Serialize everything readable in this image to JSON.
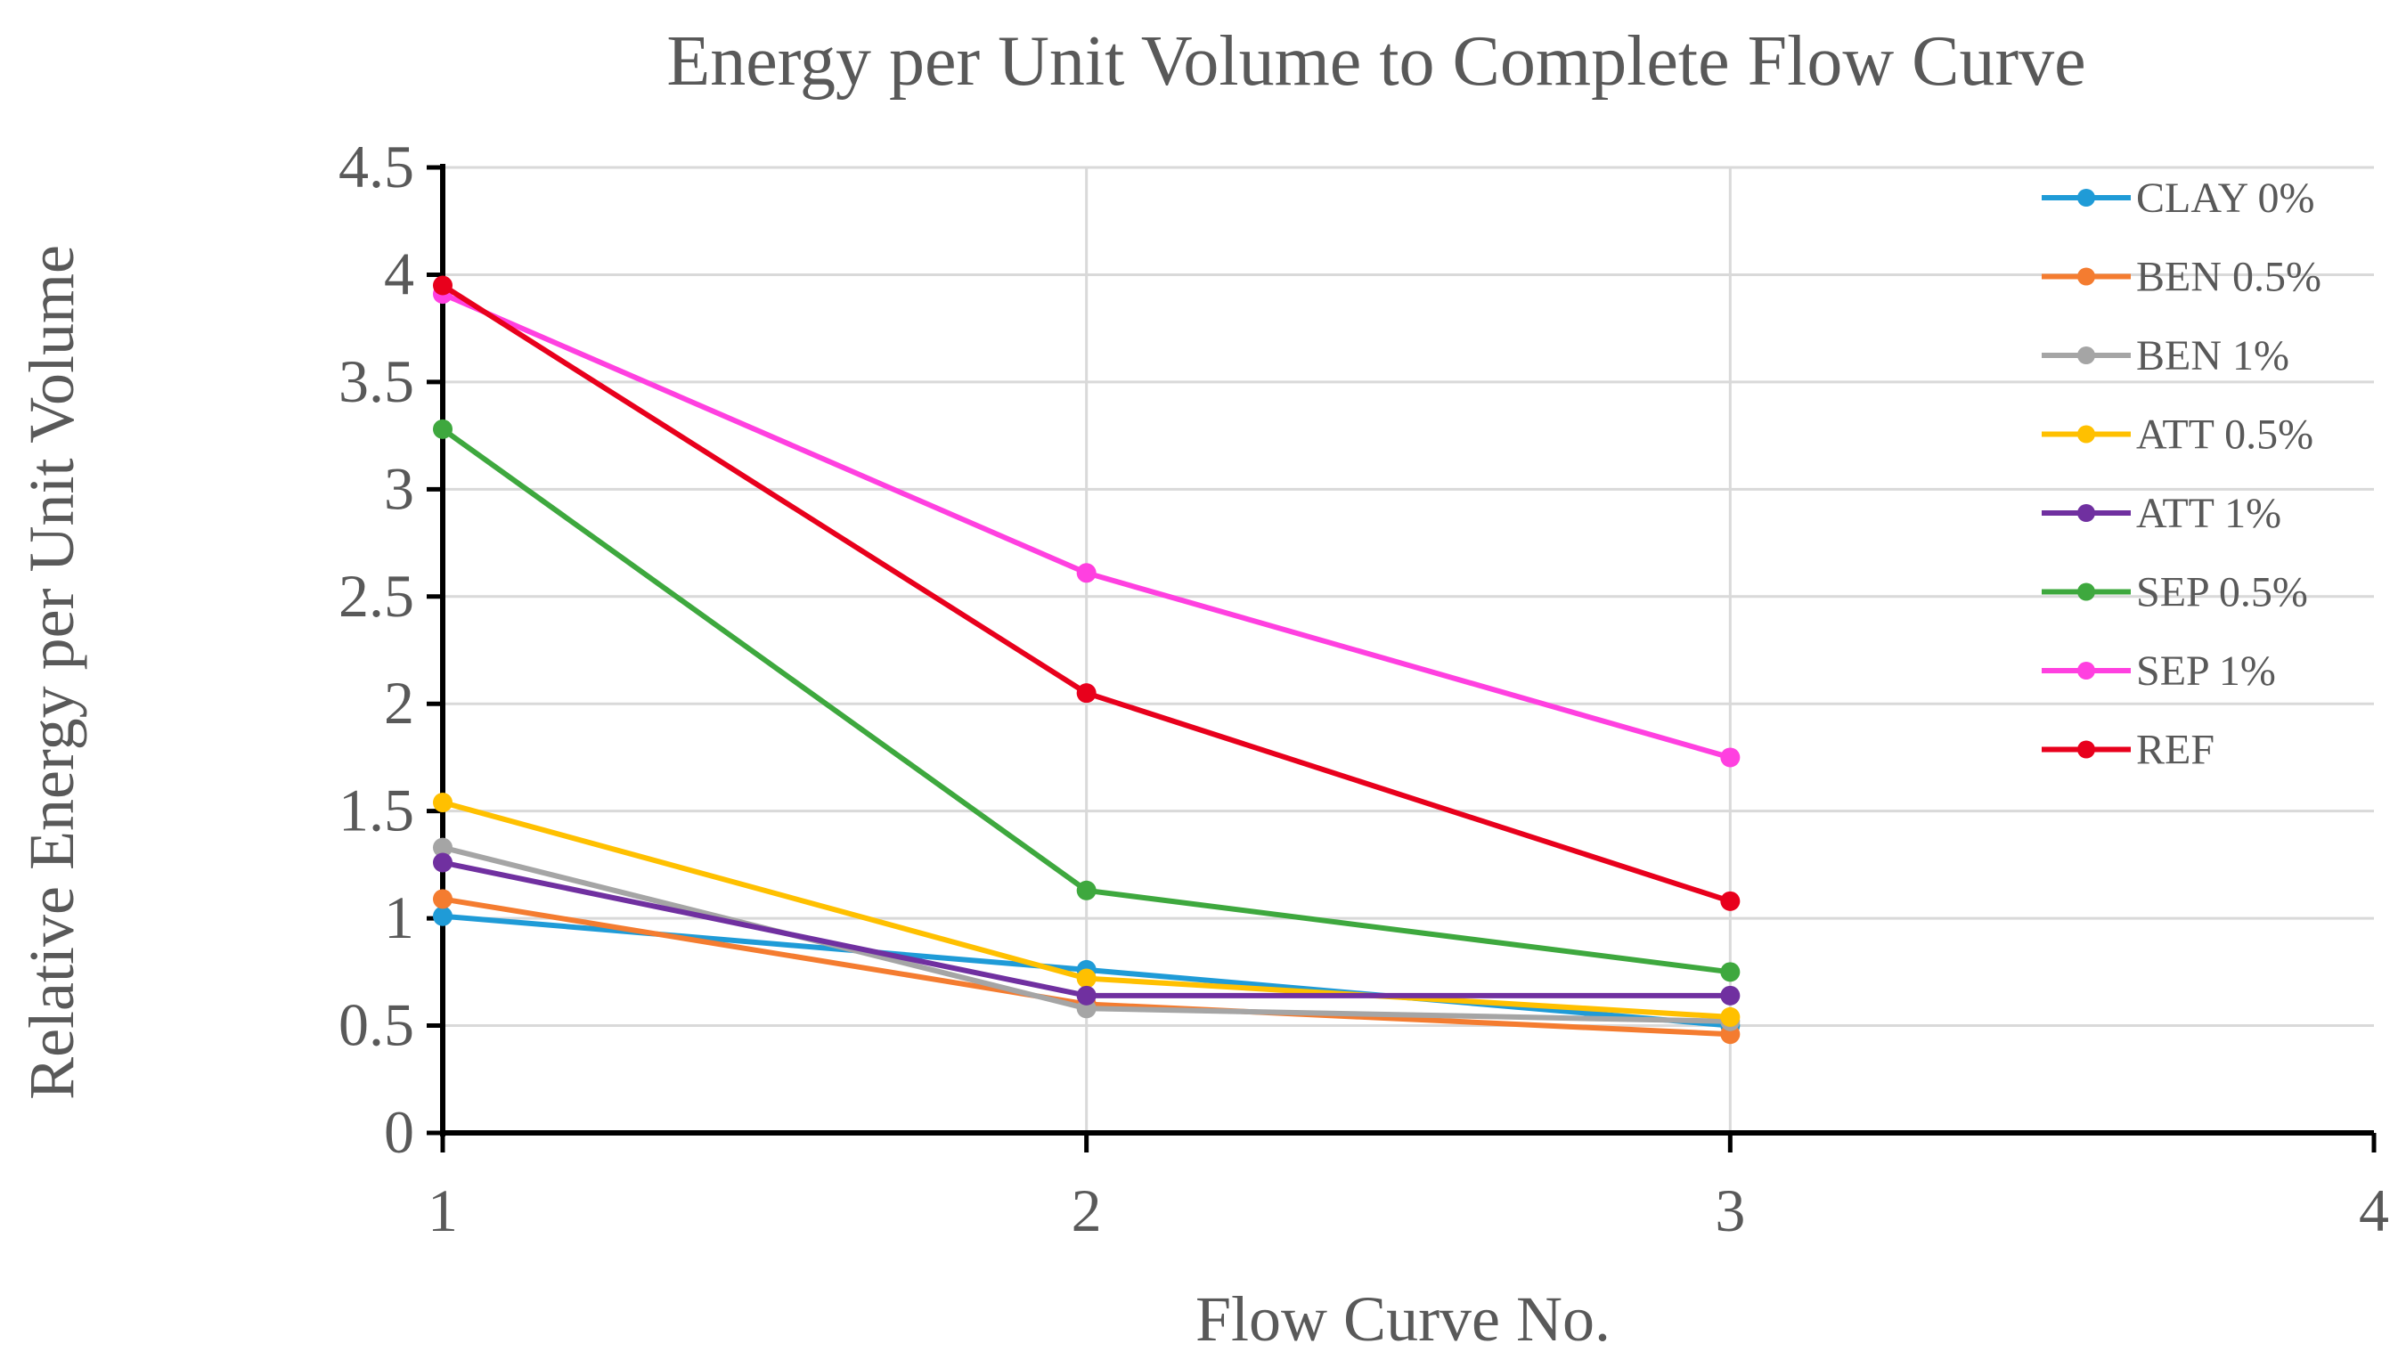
{
  "chart_data": {
    "type": "line",
    "title": "Energy per Unit Volume to Complete Flow Curve",
    "xlabel": "Flow Curve No.",
    "ylabel": "Relative Energy per Unit Volume",
    "xlim": [
      1,
      4
    ],
    "ylim": [
      0,
      4.5
    ],
    "x_ticks": [
      1,
      2,
      3,
      4
    ],
    "x_tick_labels": [
      "1",
      "2",
      "3",
      "4"
    ],
    "y_ticks": [
      0,
      0.5,
      1,
      1.5,
      2,
      2.5,
      3,
      3.5,
      4,
      4.5
    ],
    "y_tick_labels": [
      "0",
      "0.5",
      "1",
      "1.5",
      "2",
      "2.5",
      "3",
      "3.5",
      "4",
      "4.5"
    ],
    "grid": true,
    "legend_position": "right",
    "series": [
      {
        "name": "CLAY 0%",
        "color": "#1f9bd7",
        "x": [
          1,
          2,
          3
        ],
        "values": [
          1.01,
          0.76,
          0.5
        ]
      },
      {
        "name": "BEN 0.5%",
        "color": "#f47c30",
        "x": [
          1,
          2,
          3
        ],
        "values": [
          1.09,
          0.6,
          0.46
        ]
      },
      {
        "name": "BEN 1%",
        "color": "#a5a5a5",
        "x": [
          1,
          2,
          3
        ],
        "values": [
          1.33,
          0.58,
          0.52
        ]
      },
      {
        "name": "ATT 0.5%",
        "color": "#ffc000",
        "x": [
          1,
          2,
          3
        ],
        "values": [
          1.54,
          0.72,
          0.54
        ]
      },
      {
        "name": "ATT 1%",
        "color": "#7030a0",
        "x": [
          1,
          2,
          3
        ],
        "values": [
          1.26,
          0.64,
          0.64
        ]
      },
      {
        "name": "SEP 0.5%",
        "color": "#3ea83e",
        "x": [
          1,
          2,
          3
        ],
        "values": [
          3.28,
          1.13,
          0.75
        ]
      },
      {
        "name": "SEP 1%",
        "color": "#ff40e0",
        "x": [
          1,
          2,
          3
        ],
        "values": [
          3.91,
          2.61,
          1.75
        ]
      },
      {
        "name": "REF",
        "color": "#e8001c",
        "x": [
          1,
          2,
          3
        ],
        "values": [
          3.95,
          2.05,
          1.08
        ]
      }
    ]
  }
}
